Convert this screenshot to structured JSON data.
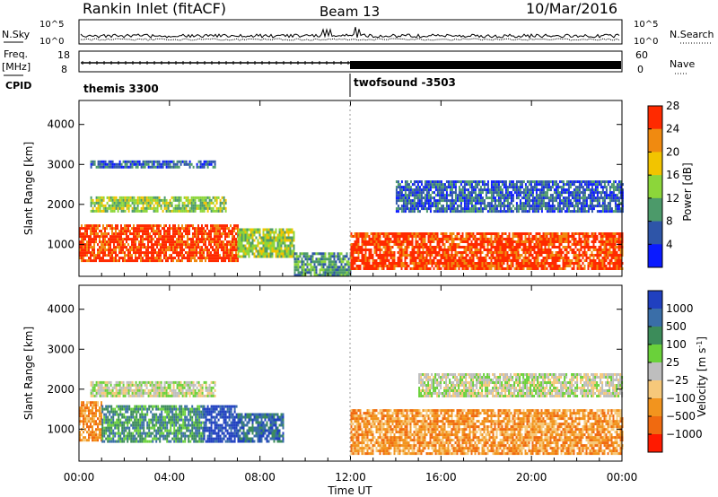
{
  "header": {
    "station": "Rankin Inlet (fitACF)",
    "beam": "Beam 13",
    "date": "10/Mar/2016"
  },
  "top_panels": {
    "nsky_label": "N.Sky",
    "nsky_ticks": [
      "10^5",
      "10^0"
    ],
    "nsearch_label": "N.Search",
    "nsearch_ticks": [
      "10^5",
      "10^0"
    ],
    "freq_label": "Freq.",
    "freq_unit": "[MHz]",
    "freq_ticks": [
      "18",
      "8"
    ],
    "nave_label": "Nave",
    "nave_ticks": [
      "60",
      "0"
    ],
    "cpid_label": "CPID",
    "cpid_segments": [
      {
        "name": "themis 3300",
        "start_hour": 0,
        "end_hour": 12
      },
      {
        "name": "twofsound -3503",
        "start_hour": 12,
        "end_hour": 24
      }
    ]
  },
  "chart_data": [
    {
      "type": "heatmap",
      "quantity": "Power",
      "xlabel": "",
      "ylabel": "Slant Range [km]",
      "x_range_hours": [
        0,
        24
      ],
      "ylim": [
        200,
        4600
      ],
      "y_ticks": [
        1000,
        2000,
        3000,
        4000
      ],
      "colorbar_label": "Power [dB]",
      "colorbar_ticks": [
        4,
        8,
        12,
        16,
        20,
        24,
        28
      ],
      "colorbar_colors": [
        "#0a1aff",
        "#2e55a8",
        "#4c9a6a",
        "#8cd63a",
        "#f2c400",
        "#f08a10",
        "#ff2a00"
      ],
      "patterns": [
        {
          "start_hour": 0.0,
          "end_hour": 7.0,
          "y_low": 600,
          "y_high": 1500,
          "level": 6
        },
        {
          "start_hour": 7.0,
          "end_hour": 9.5,
          "y_low": 700,
          "y_high": 1400,
          "level": 3
        },
        {
          "start_hour": 9.5,
          "end_hour": 12.0,
          "y_low": 250,
          "y_high": 800,
          "level": 2
        },
        {
          "start_hour": 12.0,
          "end_hour": 24.0,
          "y_low": 400,
          "y_high": 1300,
          "level": 6
        },
        {
          "start_hour": 0.5,
          "end_hour": 6.5,
          "y_low": 1800,
          "y_high": 2200,
          "level": 3
        },
        {
          "start_hour": 14.0,
          "end_hour": 24.0,
          "y_low": 1800,
          "y_high": 2600,
          "level": 1
        },
        {
          "start_hour": 0.5,
          "end_hour": 6.0,
          "y_low": 2900,
          "y_high": 3100,
          "level": 1
        }
      ]
    },
    {
      "type": "heatmap",
      "quantity": "Velocity",
      "xlabel": "Time UT",
      "ylabel": "Slant Range [km]",
      "x_range_hours": [
        0,
        24
      ],
      "x_tick_labels": [
        "00:00",
        "04:00",
        "08:00",
        "12:00",
        "16:00",
        "20:00",
        "00:00"
      ],
      "ylim": [
        200,
        4600
      ],
      "y_ticks": [
        1000,
        2000,
        3000,
        4000
      ],
      "colorbar_label": "Velocity [m s^-1]",
      "colorbar_ticks": [
        1000,
        500,
        100,
        25,
        -25,
        -100,
        -500,
        -1000
      ],
      "colorbar_colors": [
        "#2040c0",
        "#3a6ea8",
        "#3c8c5a",
        "#6ad13a",
        "#bebebe",
        "#f6c87a",
        "#f2941e",
        "#f06a10",
        "#ff1a00"
      ],
      "patterns": [
        {
          "start_hour": 0.0,
          "end_hour": 1.0,
          "y_low": 700,
          "y_high": 1700,
          "level": 6
        },
        {
          "start_hour": 1.0,
          "end_hour": 5.5,
          "y_low": 700,
          "y_high": 1600,
          "level": 2
        },
        {
          "start_hour": 5.5,
          "end_hour": 7.0,
          "y_low": 700,
          "y_high": 1600,
          "level": 0
        },
        {
          "start_hour": 7.0,
          "end_hour": 9.0,
          "y_low": 700,
          "y_high": 1400,
          "level": 1
        },
        {
          "start_hour": 12.0,
          "end_hour": 24.0,
          "y_low": 400,
          "y_high": 1500,
          "level": 6
        },
        {
          "start_hour": 0.5,
          "end_hour": 6.0,
          "y_low": 1800,
          "y_high": 2200,
          "level": 4
        },
        {
          "start_hour": 15.0,
          "end_hour": 24.0,
          "y_low": 1800,
          "y_high": 2400,
          "level": 4
        }
      ]
    }
  ]
}
